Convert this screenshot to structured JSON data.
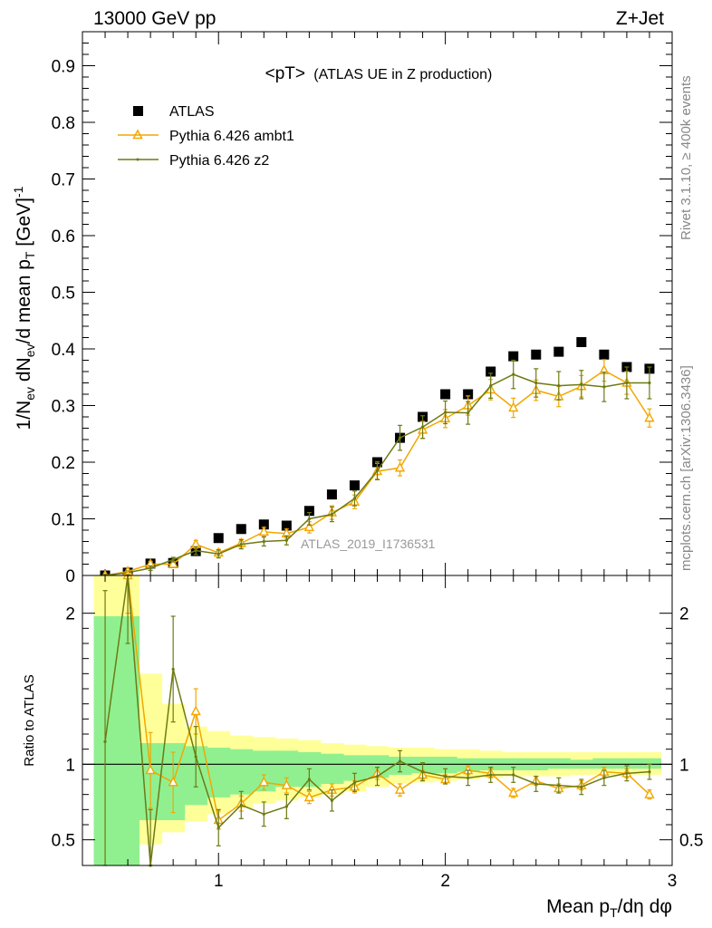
{
  "header": {
    "left": "13000 GeV pp",
    "right": "Z+Jet"
  },
  "side_labels": {
    "rivet": "Rivet 3.1.10, ≥ 400k events",
    "mcplots": "mcplots.cern.ch [arXiv:1306.3436]"
  },
  "colors": {
    "atlas": "#000000",
    "ambt1": "#f2a700",
    "z2": "#6e7a12",
    "band_green": "#90f090",
    "band_yellow": "#ffff99"
  },
  "chart_data": [
    {
      "type": "scatter",
      "title_main": "<pT>",
      "title_sub": "(ATLAS UE in Z production)",
      "watermark": "ATLAS_2019_I1736531",
      "xlabel_main": "Mean p",
      "xlabel_sub": "T",
      "xlabel_rest": "/dη dφ",
      "ylabel_parts": [
        "1/N",
        "ev",
        " dN",
        "ev",
        "/d mean p",
        "T",
        " [GeV]",
        "-1"
      ],
      "xlim": [
        0.4,
        3.0
      ],
      "ylim": [
        0,
        0.96
      ],
      "xticks": [
        1,
        2,
        3
      ],
      "yticks": [
        0,
        0.1,
        0.2,
        0.3,
        0.4,
        0.5,
        0.6,
        0.7,
        0.8,
        0.9
      ],
      "ytick_labels": [
        "0",
        "0.1",
        "0.2",
        "0.3",
        "0.4",
        "0.5",
        "0.6",
        "0.7",
        "0.8",
        "0.9"
      ],
      "legend": [
        "ATLAS",
        "Pythia 6.426 ambt1",
        "Pythia 6.426 z2"
      ],
      "legend_position": "top-left",
      "x": [
        0.5,
        0.6,
        0.7,
        0.8,
        0.9,
        1.0,
        1.1,
        1.2,
        1.3,
        1.4,
        1.5,
        1.6,
        1.7,
        1.8,
        1.9,
        2.0,
        2.1,
        2.2,
        2.3,
        2.4,
        2.5,
        2.6,
        2.7,
        2.8,
        2.9
      ],
      "series": [
        {
          "name": "ATLAS",
          "values": [
            0.0,
            0.005,
            0.021,
            0.022,
            0.043,
            0.066,
            0.082,
            0.09,
            0.088,
            0.114,
            0.143,
            0.159,
            0.2,
            0.243,
            0.28,
            0.32,
            0.32,
            0.36,
            0.387,
            0.39,
            0.395,
            0.412,
            0.39,
            0.368,
            0.365
          ]
        },
        {
          "name": "Pythia 6.426 ambt1",
          "values": [
            0.0,
            0.007,
            0.02,
            0.02,
            0.055,
            0.04,
            0.057,
            0.077,
            0.074,
            0.085,
            0.111,
            0.13,
            0.184,
            0.19,
            0.257,
            0.277,
            0.3,
            0.328,
            0.296,
            0.327,
            0.316,
            0.334,
            0.362,
            0.34,
            0.278
          ],
          "errors": [
            0.002,
            0.003,
            0.005,
            0.005,
            0.007,
            0.006,
            0.007,
            0.008,
            0.008,
            0.01,
            0.012,
            0.012,
            0.014,
            0.014,
            0.015,
            0.016,
            0.017,
            0.018,
            0.017,
            0.018,
            0.018,
            0.019,
            0.019,
            0.02,
            0.016
          ]
        },
        {
          "name": "Pythia 6.426 z2",
          "values": [
            0.0,
            0.005,
            0.013,
            0.028,
            0.044,
            0.038,
            0.055,
            0.06,
            0.062,
            0.1,
            0.108,
            0.136,
            0.185,
            0.243,
            0.262,
            0.288,
            0.287,
            0.335,
            0.355,
            0.34,
            0.335,
            0.337,
            0.333,
            0.34,
            0.34
          ],
          "errors": [
            0.002,
            0.003,
            0.004,
            0.004,
            0.007,
            0.007,
            0.008,
            0.008,
            0.008,
            0.011,
            0.013,
            0.013,
            0.016,
            0.022,
            0.02,
            0.02,
            0.02,
            0.022,
            0.025,
            0.025,
            0.025,
            0.025,
            0.026,
            0.028,
            0.028
          ]
        }
      ]
    },
    {
      "type": "scatter",
      "ylabel": "Ratio to ATLAS",
      "xlim": [
        0.4,
        3.0
      ],
      "ylim": [
        0.33,
        2.25
      ],
      "reference": 1,
      "yticks": [
        0.5,
        1,
        2
      ],
      "ytick_labels": [
        "0.5",
        "1",
        "2"
      ],
      "xticks": [
        1,
        2,
        3
      ],
      "xtick_labels": [
        "1",
        "2",
        "3"
      ],
      "x": [
        0.5,
        0.6,
        0.7,
        0.8,
        0.9,
        1.0,
        1.1,
        1.2,
        1.3,
        1.4,
        1.5,
        1.6,
        1.7,
        1.8,
        1.9,
        2.0,
        2.1,
        2.2,
        2.3,
        2.4,
        2.5,
        2.6,
        2.7,
        2.8,
        2.9
      ],
      "bands": {
        "green": [
          [
            0.33,
            1.98
          ],
          [
            0.33,
            1.98
          ],
          [
            0.63,
            1.14
          ],
          [
            0.63,
            1.14
          ],
          [
            0.73,
            1.12
          ],
          [
            0.78,
            1.11
          ],
          [
            0.8,
            1.1
          ],
          [
            0.82,
            1.09
          ],
          [
            0.85,
            1.09
          ],
          [
            0.85,
            1.08
          ],
          [
            0.87,
            1.07
          ],
          [
            0.89,
            1.06
          ],
          [
            0.91,
            1.06
          ],
          [
            0.93,
            1.05
          ],
          [
            0.94,
            1.05
          ],
          [
            0.94,
            1.05
          ],
          [
            0.95,
            1.04
          ],
          [
            0.96,
            1.04
          ],
          [
            0.96,
            1.04
          ],
          [
            0.96,
            1.04
          ],
          [
            0.97,
            1.04
          ],
          [
            0.97,
            1.03
          ],
          [
            0.97,
            1.04
          ],
          [
            0.97,
            1.04
          ],
          [
            0.97,
            1.04
          ]
        ],
        "yellow": [
          [
            0.33,
            2.25
          ],
          [
            0.33,
            2.25
          ],
          [
            0.47,
            1.6
          ],
          [
            0.55,
            1.4
          ],
          [
            0.62,
            1.25
          ],
          [
            0.67,
            1.22
          ],
          [
            0.71,
            1.19
          ],
          [
            0.74,
            1.18
          ],
          [
            0.76,
            1.17
          ],
          [
            0.78,
            1.16
          ],
          [
            0.8,
            1.14
          ],
          [
            0.82,
            1.13
          ],
          [
            0.85,
            1.12
          ],
          [
            0.87,
            1.11
          ],
          [
            0.88,
            1.11
          ],
          [
            0.89,
            1.1
          ],
          [
            0.9,
            1.1
          ],
          [
            0.91,
            1.09
          ],
          [
            0.92,
            1.08
          ],
          [
            0.92,
            1.08
          ],
          [
            0.92,
            1.08
          ],
          [
            0.93,
            1.08
          ],
          [
            0.93,
            1.08
          ],
          [
            0.93,
            1.08
          ],
          [
            0.93,
            1.08
          ]
        ]
      },
      "series": [
        {
          "name": "Pythia 6.426 ambt1",
          "values": [
            null,
            2.3,
            0.96,
            0.88,
            1.35,
            0.63,
            0.74,
            0.88,
            0.86,
            0.78,
            0.83,
            0.85,
            0.94,
            0.83,
            0.93,
            0.9,
            0.96,
            0.94,
            0.81,
            0.89,
            0.84,
            0.86,
            0.95,
            0.94,
            0.8
          ],
          "errors": [
            0,
            0.3,
            0.25,
            0.2,
            0.15,
            0.06,
            0.05,
            0.05,
            0.05,
            0.04,
            0.04,
            0.04,
            0.04,
            0.04,
            0.03,
            0.03,
            0.03,
            0.03,
            0.03,
            0.03,
            0.03,
            0.03,
            0.03,
            0.03,
            0.03
          ]
        },
        {
          "name": "Pythia 6.426 z2",
          "values": [
            1.15,
            2.3,
            0.3,
            1.63,
            1.05,
            0.58,
            0.73,
            0.67,
            0.72,
            0.9,
            0.76,
            0.88,
            0.92,
            1.02,
            0.95,
            0.92,
            0.91,
            0.93,
            0.93,
            0.87,
            0.86,
            0.85,
            0.91,
            0.94,
            0.95
          ],
          "errors": [
            1.0,
            0.5,
            0.4,
            0.35,
            0.2,
            0.12,
            0.09,
            0.08,
            0.08,
            0.07,
            0.07,
            0.06,
            0.06,
            0.07,
            0.06,
            0.05,
            0.05,
            0.05,
            0.05,
            0.05,
            0.05,
            0.05,
            0.05,
            0.05,
            0.05
          ]
        }
      ]
    }
  ]
}
